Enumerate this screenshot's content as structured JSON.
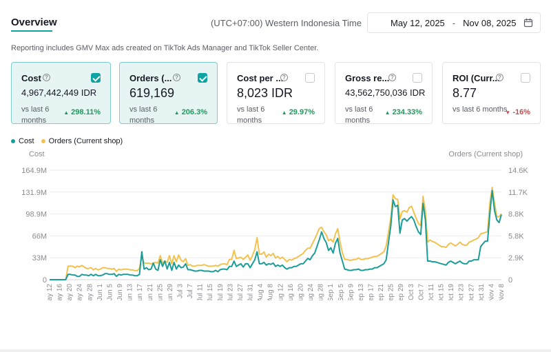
{
  "header": {
    "tab_label": "Overview",
    "timezone": "(UTC+07:00) Western Indonesia Time",
    "date_start": "May 12, 2025",
    "date_separator": "-",
    "date_end": "Nov 08, 2025",
    "calendar_icon": "calendar-icon"
  },
  "note": "Reporting includes GMV Max ads created on TikTok Ads Manager and TikTok Seller Center.",
  "cards": [
    {
      "title": "Cost",
      "value": "4,967,442,449 IDR",
      "compare": "vs last 6 months",
      "change": "298.11%",
      "direction": "up",
      "checked": true
    },
    {
      "title": "Orders (...",
      "value": "619,169",
      "compare": "vs last 6 months",
      "change": "206.3%",
      "direction": "up",
      "checked": true
    },
    {
      "title": "Cost per ...",
      "value": "8,023 IDR",
      "compare": "vs last 6 months",
      "change": "29.97%",
      "direction": "up",
      "checked": false
    },
    {
      "title": "Gross re...",
      "value": "43,562,750,036 IDR",
      "compare": "vs last 6 months",
      "change": "234.33%",
      "direction": "up",
      "checked": false
    },
    {
      "title": "ROI (Curr...",
      "value": "8.77",
      "compare": "vs last 6 months",
      "change": "-16%",
      "direction": "down",
      "checked": false
    }
  ],
  "colors": {
    "accent": "#0fa3a3",
    "cost_line": "#1a9c98",
    "orders_line": "#f2c14e",
    "up": "#1d9a5a",
    "down": "#c94a4a"
  },
  "chart_data": {
    "type": "line",
    "legend": [
      "Cost",
      "Orders (Current shop)"
    ],
    "ylabel_left": "Cost",
    "ylabel_right": "Orders (Current shop)",
    "y_left_ticks": [
      "0",
      "33M",
      "66M",
      "98.9M",
      "131.9M",
      "164.9M"
    ],
    "y_left_max": 164.9,
    "y_right_ticks": [
      "0",
      "2.9K",
      "5.8K",
      "8.8K",
      "11.7K",
      "14.6K"
    ],
    "y_right_max": 14.6,
    "x_tick_labels": [
      "May 12",
      "May 16",
      "May 20",
      "May 24",
      "May 28",
      "Jun 1",
      "Jun 5",
      "Jun 9",
      "Jun 13",
      "Jun 17",
      "Jun 21",
      "Jun 25",
      "Jun 29",
      "Jul 3",
      "Jul 7",
      "Jul 11",
      "Jul 15",
      "Jul 19",
      "Jul 23",
      "Jul 27",
      "Jul 31",
      "Aug 4",
      "Aug 8",
      "Aug 12",
      "Aug 16",
      "Aug 20",
      "Aug 24",
      "Aug 28",
      "Sep 1",
      "Sep 5",
      "Sep 9",
      "Sep 13",
      "Sep 17",
      "Sep 21",
      "Sep 25",
      "Sep 29",
      "Oct 3",
      "Oct 7",
      "Oct 11",
      "Oct 15",
      "Oct 19",
      "Oct 23",
      "Oct 27",
      "Oct 31",
      "Nov 4",
      "Nov 8"
    ],
    "grid": true,
    "series": [
      {
        "name": "Cost",
        "unit": "M",
        "values": [
          0,
          0,
          0,
          0,
          0,
          0,
          0,
          0,
          8,
          8,
          7,
          7,
          5,
          5,
          8,
          7,
          7,
          6,
          8,
          6,
          8,
          6,
          6,
          7,
          9,
          9,
          8,
          8,
          9,
          5,
          8,
          7,
          8,
          8,
          8,
          7,
          7,
          6,
          6,
          8,
          42,
          16,
          18,
          15,
          16,
          25,
          16,
          14,
          30,
          20,
          28,
          16,
          26,
          14,
          26,
          16,
          22,
          18,
          19,
          24,
          15,
          15,
          14,
          13,
          13,
          14,
          14,
          13,
          13,
          13,
          12,
          12,
          14,
          12,
          15,
          16,
          16,
          15,
          20,
          20,
          28,
          20,
          22,
          24,
          19,
          24,
          24,
          18,
          24,
          30,
          42,
          24,
          24,
          26,
          22,
          24,
          23,
          25,
          20,
          22,
          20,
          22,
          18,
          16,
          18,
          18,
          20,
          20,
          22,
          24,
          24,
          28,
          32,
          30,
          36,
          40,
          50,
          60,
          72,
          62,
          56,
          44,
          48,
          40,
          55,
          62,
          40,
          28,
          16,
          15,
          14,
          14,
          15,
          15,
          16,
          14,
          14,
          15,
          15,
          16,
          16,
          18,
          18,
          20,
          22,
          24,
          30,
          56,
          80,
          120,
          110,
          112,
          70,
          90,
          92,
          88,
          92,
          95,
          90,
          80,
          72,
          68,
          115,
          90,
          28,
          28,
          27,
          27,
          26,
          25,
          24,
          23,
          22,
          26,
          28,
          26,
          24,
          26,
          28,
          25,
          24,
          24,
          28,
          28,
          30,
          30,
          30,
          50,
          54,
          58,
          58,
          100,
          134,
          104,
          90,
          86,
          98
        ]
      },
      {
        "name": "Orders (Current shop)",
        "unit": "K",
        "values": [
          0,
          0,
          0,
          0,
          0,
          0,
          0,
          0,
          1.8,
          1.8,
          1.8,
          1.6,
          1.8,
          1.7,
          1.9,
          1.7,
          1.5,
          1.5,
          1.6,
          1.3,
          1.5,
          1.3,
          1.4,
          1.6,
          1.6,
          1.5,
          1.5,
          1.4,
          1.5,
          1.1,
          1.4,
          1.3,
          1.4,
          1.4,
          1.4,
          1.3,
          1.3,
          1.2,
          1.2,
          1.5,
          3.1,
          2.2,
          2.2,
          2.2,
          2.1,
          2.2,
          2.3,
          2.2,
          3.2,
          2.2,
          2.5,
          2.3,
          3.2,
          2.1,
          3.2,
          2.4,
          3.3,
          2.6,
          2.4,
          2.8,
          1.9,
          2.0,
          1.8,
          1.8,
          1.9,
          1.9,
          1.9,
          2.0,
          1.9,
          1.8,
          1.8,
          1.8,
          1.9,
          1.8,
          2.0,
          2.1,
          2.1,
          2.0,
          2.7,
          2.7,
          3.9,
          2.8,
          2.9,
          3.0,
          2.7,
          3.0,
          3.3,
          2.6,
          3.2,
          4.0,
          5.6,
          3.4,
          3.4,
          3.7,
          3.0,
          3.4,
          3.2,
          3.5,
          2.9,
          3.1,
          2.8,
          3.0,
          2.7,
          2.4,
          2.7,
          2.6,
          2.8,
          2.9,
          3.1,
          3.3,
          3.5,
          3.9,
          4.2,
          4.2,
          4.8,
          5.4,
          6.1,
          6.8,
          7.0,
          6.4,
          6.0,
          5.2,
          5.4,
          5.0,
          6.1,
          6.8,
          5.0,
          3.6,
          2.7,
          2.7,
          2.6,
          2.6,
          2.7,
          2.7,
          2.9,
          2.7,
          2.7,
          2.8,
          2.8,
          2.9,
          3.0,
          3.1,
          3.1,
          3.3,
          3.5,
          3.7,
          4.5,
          6.3,
          8.2,
          11.3,
          10.8,
          10.7,
          8.1,
          9.1,
          9.2,
          9.0,
          9.6,
          9.8,
          9.0,
          8.2,
          7.5,
          7.2,
          11.1,
          9.2,
          5.0,
          5.3,
          5.1,
          5.0,
          4.8,
          4.6,
          4.4,
          4.4,
          4.3,
          4.7,
          4.9,
          4.7,
          4.5,
          4.7,
          5.0,
          4.7,
          4.6,
          4.6,
          5.0,
          5.1,
          5.3,
          5.4,
          5.6,
          6.1,
          6.2,
          6.3,
          6.4,
          10.3,
          12.3,
          10.2,
          8.4,
          8.4,
          8.8
        ]
      }
    ]
  }
}
